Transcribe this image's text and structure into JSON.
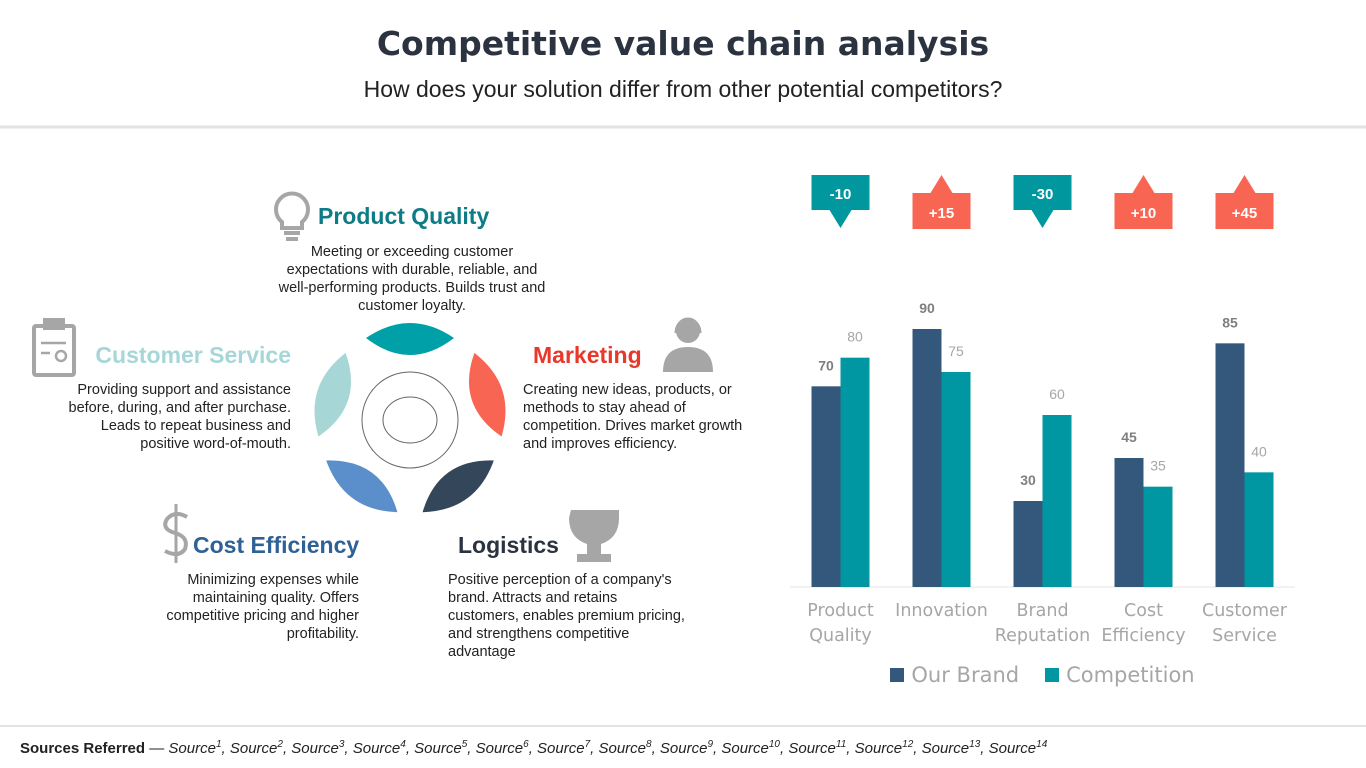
{
  "header": {
    "title": "Competitive value chain analysis",
    "subtitle": "How does your solution differ from other potential competitors?"
  },
  "segments": [
    {
      "title": "Product Quality",
      "description": "Meeting or exceeding customer expectations with durable, reliable, and well-performing products. Builds trust and customer loyalty."
    },
    {
      "title": "Customer Service",
      "description": "Providing support and assistance before, during, and after purchase. Leads to repeat business and positive word-of-mouth."
    },
    {
      "title": "Marketing",
      "description": "Creating new ideas, products, or methods to stay ahead of competition. Drives market growth and improves efficiency."
    },
    {
      "title": "Cost Efficiency",
      "description": "Minimizing expenses while maintaining quality. Offers competitive pricing and higher profitability."
    },
    {
      "title": "Logistics",
      "description": "Positive perception of a company's brand. Attracts and retains customers, enables premium pricing, and strengthens competitive advantage"
    }
  ],
  "chart_data": {
    "type": "bar",
    "categories": [
      "Product Quality",
      "Innovation",
      "Brand Reputation",
      "Cost Efficiency",
      "Customer Service"
    ],
    "series": [
      {
        "name": "Our Brand",
        "color": "#34587b",
        "values": [
          70,
          90,
          30,
          45,
          85
        ]
      },
      {
        "name": "Competition",
        "color": "#0097a2",
        "values": [
          80,
          75,
          60,
          35,
          40
        ]
      }
    ],
    "differences": {
      "values": [
        -10,
        15,
        -30,
        10,
        45
      ],
      "value_labels": [
        "-10",
        "+15",
        "-30",
        "+10",
        "+45"
      ],
      "positive_color": "#f96553",
      "negative_color": "#00979f"
    },
    "legend": "bottom"
  },
  "sources": {
    "label": "Sources Referred",
    "separator": "—",
    "delimiter": ",",
    "items": [
      {
        "text": "Source",
        "sup": "1"
      },
      {
        "text": "Source",
        "sup": "2"
      },
      {
        "text": "Source",
        "sup": "3"
      },
      {
        "text": "Source",
        "sup": "4"
      },
      {
        "text": "Source",
        "sup": "5"
      },
      {
        "text": "Source",
        "sup": "6"
      },
      {
        "text": "Source",
        "sup": "7"
      },
      {
        "text": "Source",
        "sup": "8"
      },
      {
        "text": "Source",
        "sup": "9"
      },
      {
        "text": "Source",
        "sup": "10"
      },
      {
        "text": "Source",
        "sup": "11"
      },
      {
        "text": "Source",
        "sup": "12"
      },
      {
        "text": "Source",
        "sup": "13"
      },
      {
        "text": "Source",
        "sup": "14"
      }
    ]
  }
}
